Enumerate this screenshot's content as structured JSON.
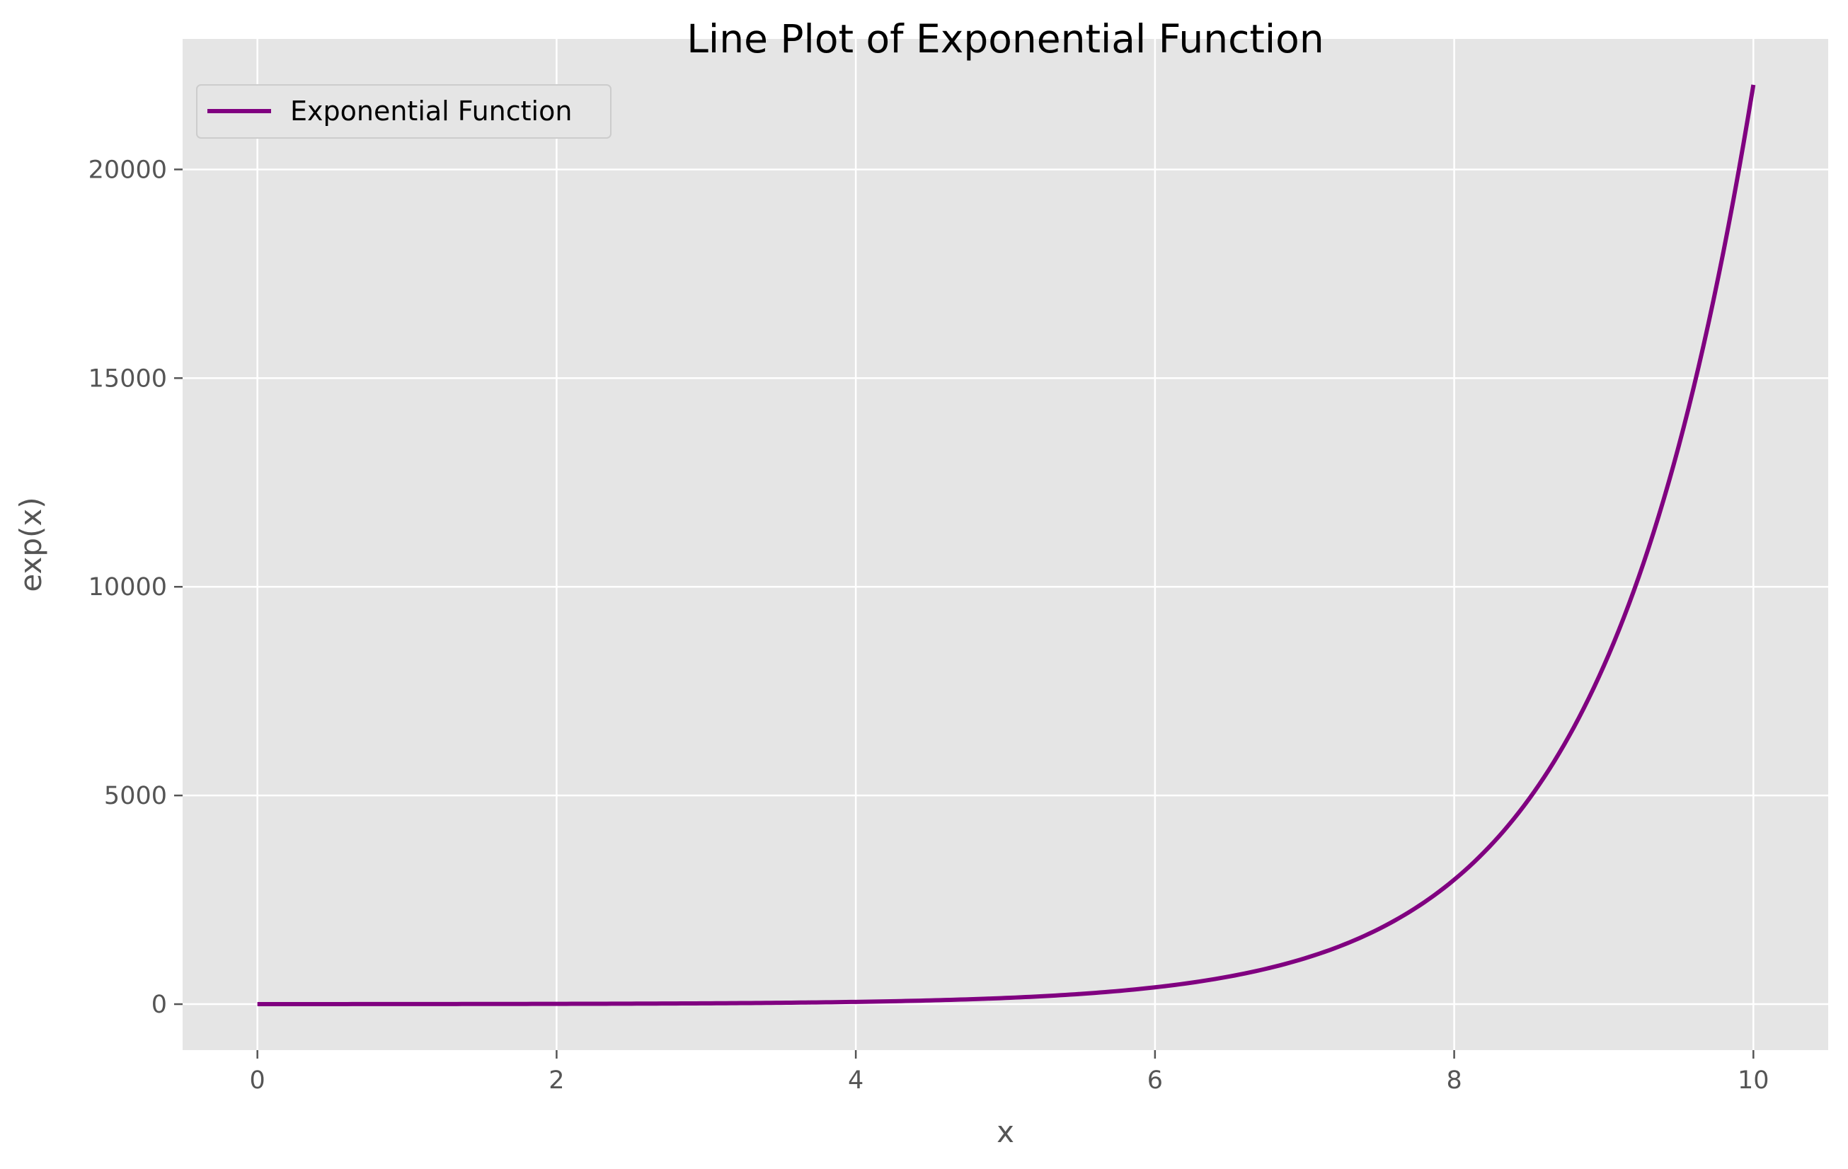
{
  "chart_data": {
    "type": "line",
    "title": "Line Plot of Exponential Function",
    "xlabel": "x",
    "ylabel": "exp(x)",
    "xlim": [
      -0.5,
      10.5
    ],
    "ylim": [
      -1101.3,
      23127.2
    ],
    "xticks": [
      0,
      2,
      4,
      6,
      8,
      10
    ],
    "yticks": [
      0,
      5000,
      10000,
      15000,
      20000
    ],
    "grid": true,
    "legend_position": "upper-left",
    "series": [
      {
        "name": "Exponential Function",
        "color": "#800080",
        "function": "exp(x)",
        "x": [
          0,
          0.5,
          1,
          1.5,
          2,
          2.5,
          3,
          3.5,
          4,
          4.5,
          5,
          5.5,
          6,
          6.5,
          7,
          7.5,
          8,
          8.5,
          9,
          9.5,
          10
        ],
        "y": [
          1,
          1.65,
          2.72,
          4.48,
          7.39,
          12.18,
          20.09,
          33.12,
          54.6,
          90.02,
          148.41,
          244.69,
          403.43,
          665.14,
          1096.63,
          1808.04,
          2980.96,
          4914.77,
          8103.08,
          13359.73,
          22026.47
        ]
      }
    ]
  },
  "colors": {
    "plot_background": "#e5e5e5",
    "grid": "#ffffff",
    "tick_text": "#555555"
  }
}
